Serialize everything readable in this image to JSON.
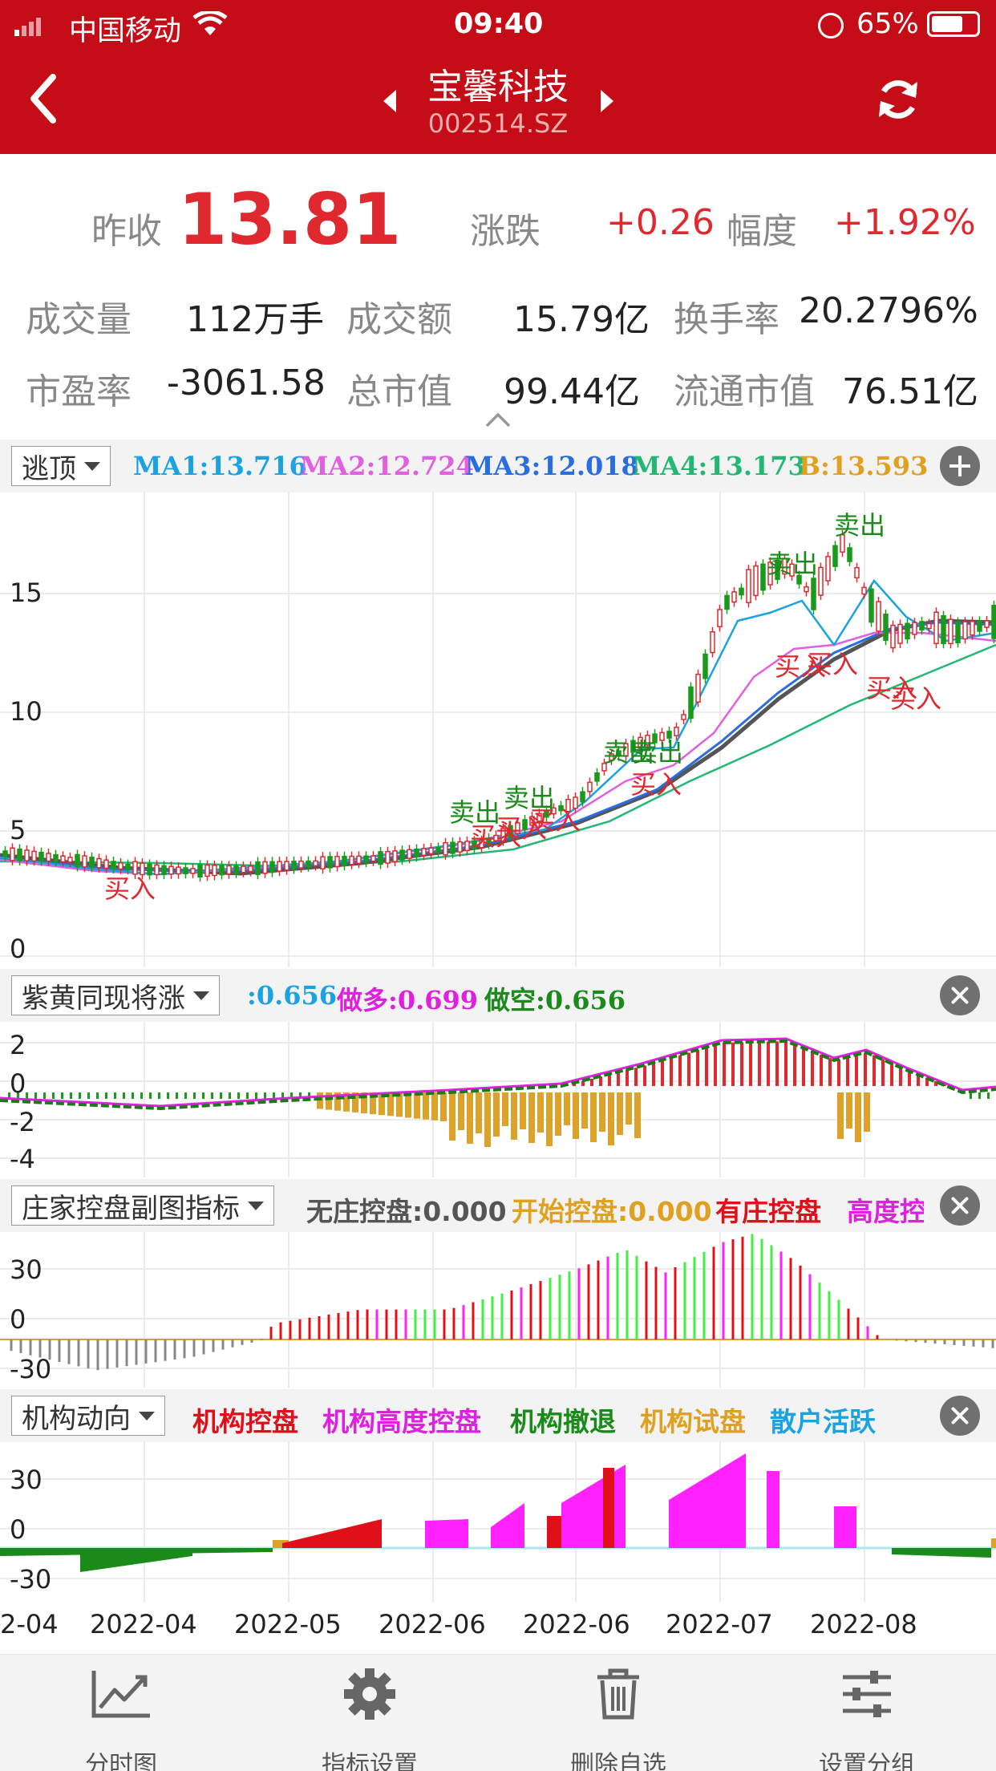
{
  "status_bar": {
    "carrier": "中国移动",
    "time": "09:40",
    "battery": "65%"
  },
  "header": {
    "stock_name": "宝馨科技",
    "stock_code": "002514.SZ"
  },
  "quote": {
    "prev_close_label": "昨收",
    "prev_close": "13.81",
    "change_label": "涨跌",
    "change": "+0.26",
    "range_label": "幅度",
    "range": "+1.92%",
    "volume_label": "成交量",
    "volume": "112万手",
    "turnover_amount_label": "成交额",
    "turnover_amount": "15.79亿",
    "turnover_rate_label": "换手率",
    "turnover_rate": "20.2796%",
    "pe_label": "市盈率",
    "pe": "-3061.58",
    "market_cap_label": "总市值",
    "market_cap": "99.44亿",
    "float_cap_label": "流通市值",
    "float_cap": "76.51亿"
  },
  "main_chart": {
    "indicator": "逃顶",
    "ma1": "MA1:13.716",
    "ma2": "MA2:12.724",
    "ma3": "MA3:12.018",
    "ma4": "MA4:13.173",
    "b": "B:13.593",
    "y_ticks": [
      "15",
      "10",
      "5",
      "0"
    ],
    "signals_sell": "卖出",
    "signals_buy": "买入"
  },
  "sub1": {
    "indicator": "紫黄同现将涨",
    "v1": ":0.656",
    "v2": "做多:0.699",
    "v3": "做空:0.656",
    "y_ticks": [
      "2",
      "0",
      "-2",
      "-4"
    ]
  },
  "sub2": {
    "indicator": "庄家控盘副图指标",
    "v1": "无庄控盘:0.000",
    "v2": "开始控盘:0.000",
    "v3": "有庄控盘",
    "v4": "高度控",
    "y_ticks": [
      "30",
      "0",
      "-30"
    ]
  },
  "sub3": {
    "indicator": "机构动向",
    "l1": "机构控盘",
    "l2": "机构高度控盘",
    "l3": "机构撤退",
    "l4": "机构试盘",
    "l5": "散户活跃",
    "y_ticks": [
      "30",
      "0",
      "-30"
    ]
  },
  "x_axis": [
    "2-04",
    "2022-04",
    "2022-05",
    "2022-06",
    "2022-06",
    "2022-07",
    "2022-08"
  ],
  "footer": {
    "tab1": "分时图",
    "tab2": "指标设置",
    "tab3": "删除自选",
    "tab4": "设置分组"
  },
  "colors": {
    "header_red": "#c40d16",
    "up_red": "#e0282f",
    "ma1": "#1aa3e0",
    "ma2": "#e060e0",
    "ma3": "#2a6de0",
    "ma4": "#22b874",
    "b": "#e0a020"
  }
}
